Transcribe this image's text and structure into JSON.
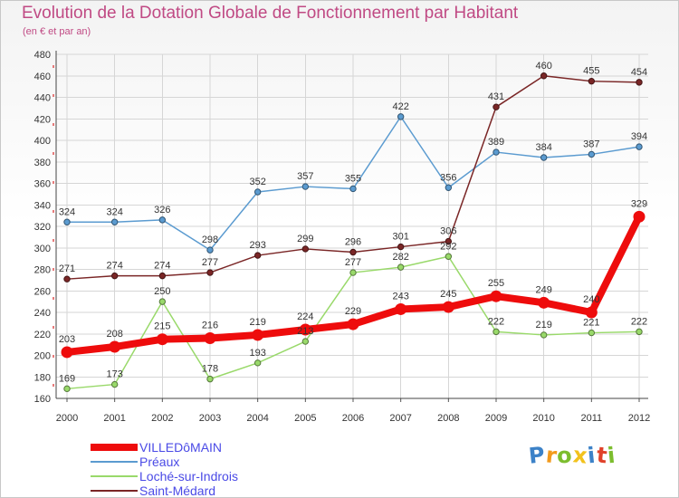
{
  "chart_data": {
    "type": "line",
    "title": "Evolution de la Dotation Globale de Fonctionnement par Habitant",
    "subtitle": "(en € et par an)",
    "xlabel": "",
    "ylabel": "",
    "categories": [
      "2000",
      "2001",
      "2002",
      "2003",
      "2004",
      "2005",
      "2006",
      "2007",
      "2008",
      "2009",
      "2010",
      "2011",
      "2012"
    ],
    "ylim": [
      160,
      480
    ],
    "yticks": [
      160,
      180,
      200,
      220,
      240,
      260,
      280,
      300,
      320,
      340,
      360,
      380,
      400,
      420,
      440,
      460,
      480
    ],
    "grid": true,
    "legend_position": "bottom-left",
    "series": [
      {
        "name": "Préaux",
        "color": "#5b9bd0",
        "values": [
          324,
          324,
          326,
          298,
          352,
          357,
          355,
          422,
          356,
          389,
          384,
          387,
          394
        ],
        "labels": [
          "324",
          "324",
          "326",
          "298",
          "352",
          "357",
          "355",
          "422",
          "356",
          "389",
          "384",
          "387",
          "394"
        ]
      },
      {
        "name": "Loché-sur-Indrois",
        "color": "#99d96a",
        "values": [
          169,
          173,
          250,
          178,
          193,
          213,
          277,
          282,
          292,
          222,
          219,
          221,
          222
        ],
        "labels": [
          "169",
          "173",
          "250",
          "178",
          "193",
          "213",
          "277",
          "282",
          "292",
          "222",
          "219",
          "221",
          "222"
        ]
      },
      {
        "name": "Saint-Médard",
        "color": "#7a2626",
        "values": [
          271,
          274,
          274,
          277,
          293,
          299,
          296,
          301,
          306,
          431,
          460,
          455,
          454
        ],
        "labels": [
          "271",
          "274",
          "274",
          "277",
          "293",
          "299",
          "296",
          "301",
          "306",
          "431",
          "460",
          "455",
          "454"
        ]
      },
      {
        "name": "VILLEDôMAIN",
        "color": "#ee0c0c",
        "values": [
          203,
          208,
          215,
          216,
          219,
          224,
          229,
          243,
          245,
          255,
          249,
          240,
          329
        ],
        "labels": [
          "203",
          "208",
          "215",
          "216",
          "219",
          "224",
          "229",
          "243",
          "245",
          "255",
          "249",
          "240",
          "329"
        ]
      }
    ],
    "legend": [
      "VILLEDôMAIN",
      "Préaux",
      "Loché-sur-Indrois",
      "Saint-Médard"
    ]
  },
  "logo": {
    "text": "Proxiti",
    "letters": [
      {
        "ch": "P",
        "color": "#3c82c8"
      },
      {
        "ch": "r",
        "color": "#f29a1c"
      },
      {
        "ch": "o",
        "color": "#7cbd2e"
      },
      {
        "ch": "x",
        "color": "#f2c21c"
      },
      {
        "ch": "i",
        "color": "#3c82c8"
      },
      {
        "ch": "t",
        "color": "#e0412a"
      },
      {
        "ch": "i",
        "color": "#7cbd2e"
      }
    ]
  }
}
